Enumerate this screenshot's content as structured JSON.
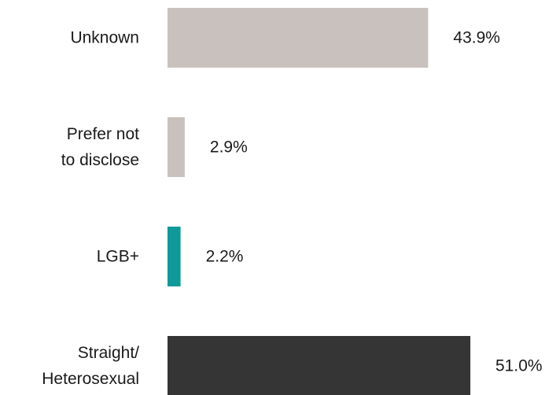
{
  "chart_data": {
    "type": "bar",
    "orientation": "horizontal",
    "title": "",
    "xlabel": "",
    "ylabel": "",
    "categories": [
      "Unknown",
      "Prefer not to disclose",
      "LGB+",
      "Straight/ Heterosexual"
    ],
    "category_lines": [
      [
        "Unknown"
      ],
      [
        "Prefer not",
        "to disclose"
      ],
      [
        "LGB+"
      ],
      [
        "Straight/",
        "Heterosexual"
      ]
    ],
    "values": [
      43.9,
      2.9,
      2.2,
      51.0
    ],
    "value_labels": [
      "43.9%",
      "2.9%",
      "2.2%",
      "51.0%"
    ],
    "colors": [
      "#c9c1bd",
      "#c9c1bd",
      "#0f9a9a",
      "#353535"
    ],
    "xlim": [
      0,
      60
    ],
    "grid": false,
    "legend": "none"
  }
}
